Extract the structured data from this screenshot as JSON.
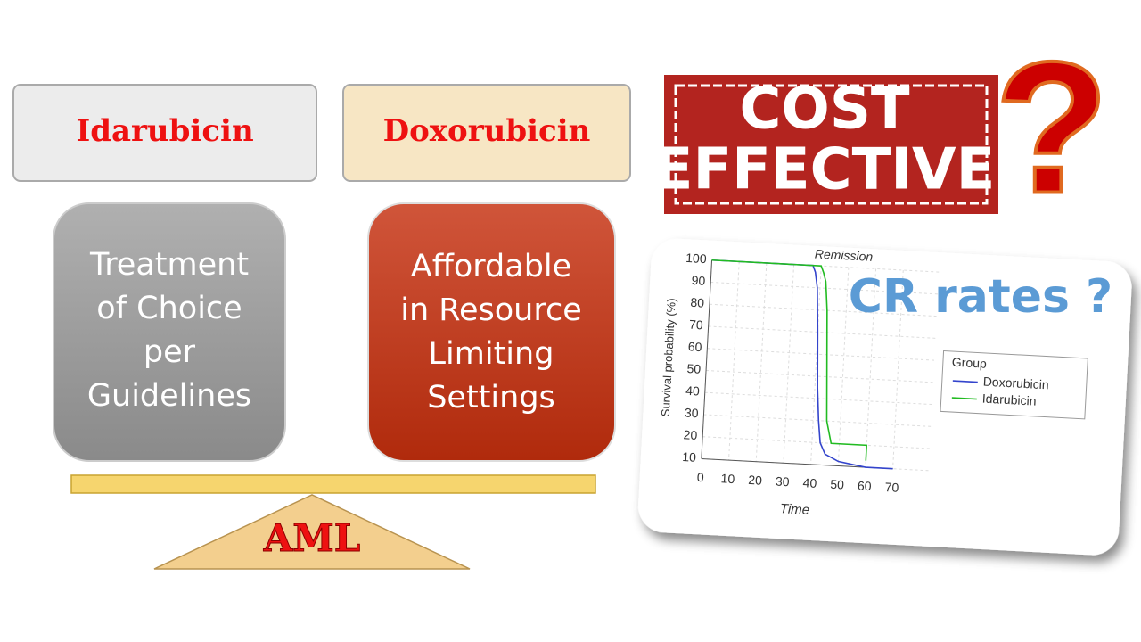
{
  "slide": {
    "drug_a": "Idarubicin",
    "drug_b": "Doxorubicin",
    "box_a_lines": [
      "Treatment",
      "of Choice",
      "per",
      "Guidelines"
    ],
    "box_b_lines": [
      "Affordable",
      "in Resource",
      "Limiting",
      "Settings"
    ],
    "fulcrum": "AML",
    "stamp_lines": [
      "COST",
      "EFFECTIVE"
    ],
    "question": "?",
    "cr_rates": "CR rates ?"
  },
  "chart_data": {
    "type": "line",
    "title": "Remission",
    "x_label": "Time",
    "y_label": "Survival probability (%)",
    "legend_title": "Group",
    "grid": true,
    "xlim": [
      0,
      70
    ],
    "xticks": [
      0,
      10,
      20,
      30,
      40,
      50,
      60,
      70
    ],
    "ylim": [
      10,
      100
    ],
    "yticks": [
      10,
      20,
      30,
      40,
      50,
      60,
      70,
      80,
      90,
      100
    ],
    "series": [
      {
        "name": "Doxorubicin",
        "color": "#3344cc",
        "x": [
          0,
          37,
          38,
          39,
          40,
          41,
          42,
          43,
          45,
          50,
          60,
          70
        ],
        "values": [
          100,
          100,
          97,
          90,
          70,
          45,
          30,
          20,
          15,
          12,
          10,
          10
        ]
      },
      {
        "name": "Idarubicin",
        "color": "#22bb22",
        "x": [
          0,
          40,
          41,
          42,
          43,
          44,
          45,
          47,
          60,
          60
        ],
        "values": [
          100,
          100,
          97,
          93,
          80,
          55,
          30,
          20,
          20,
          13
        ]
      }
    ]
  }
}
